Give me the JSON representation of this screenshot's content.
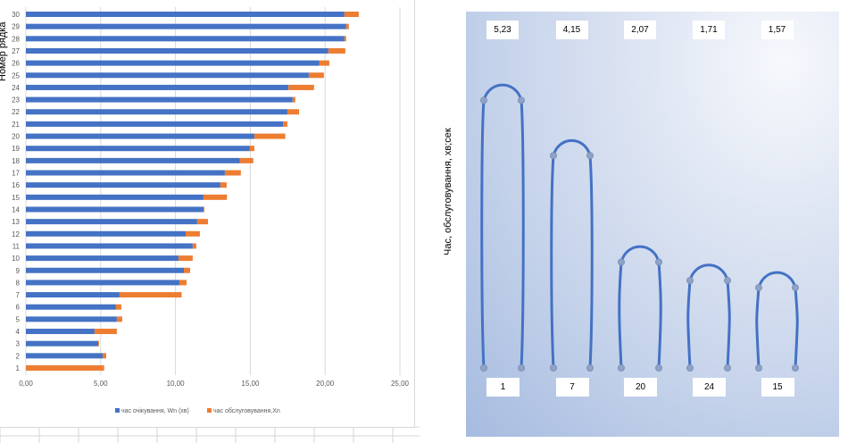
{
  "chart_data": [
    {
      "type": "bar",
      "stacked": true,
      "orientation": "horizontal",
      "title": "",
      "ylabel": "Номер рядка",
      "xlabel": "",
      "xlim": [
        0,
        25
      ],
      "x_ticks": [
        "0,00",
        "5,00",
        "10,00",
        "15,00",
        "20,00",
        "25,00"
      ],
      "grid": true,
      "legend_position": "bottom",
      "categories": [
        "1",
        "2",
        "3",
        "4",
        "5",
        "6",
        "7",
        "8",
        "9",
        "10",
        "11",
        "12",
        "13",
        "14",
        "15",
        "16",
        "17",
        "18",
        "19",
        "20",
        "21",
        "22",
        "23",
        "24",
        "25",
        "26",
        "27",
        "28",
        "29",
        "30"
      ],
      "series": [
        {
          "name": "час очікування, Wn (хв)",
          "color": "#4472C4",
          "values": [
            0,
            5.13,
            4.83,
            4.59,
            6.08,
            6.02,
            6.26,
            10.26,
            10.56,
            10.2,
            11.15,
            10.68,
            11.45,
            11.87,
            11.87,
            13.0,
            13.3,
            14.31,
            14.97,
            15.27,
            17.2,
            17.48,
            17.83,
            17.55,
            18.91,
            19.62,
            20.22,
            21.29,
            21.41,
            21.29
          ]
        },
        {
          "name": "час обслуговування,Xn",
          "color": "#ED7D31",
          "values": [
            5.23,
            0.24,
            0.06,
            1.49,
            0.36,
            0.36,
            4.15,
            0.48,
            0.42,
            0.95,
            0.24,
            0.95,
            0.72,
            0.06,
            1.57,
            0.42,
            1.07,
            0.89,
            0.3,
            2.07,
            0.28,
            0.78,
            0.18,
            1.71,
            1.01,
            0.66,
            1.13,
            0.12,
            0.18,
            0.96
          ]
        }
      ]
    },
    {
      "type": "other",
      "ylabel": "Час, обслуговування, хв;сек",
      "items": [
        {
          "label": "1",
          "value": "5,23",
          "v": 5.23
        },
        {
          "label": "7",
          "value": "4,15",
          "v": 4.15
        },
        {
          "label": "20",
          "value": "2,07",
          "v": 2.07
        },
        {
          "label": "24",
          "value": "1,71",
          "v": 1.71
        },
        {
          "label": "15",
          "value": "1,57",
          "v": 1.57
        }
      ],
      "line_color": "#4472C4"
    }
  ]
}
